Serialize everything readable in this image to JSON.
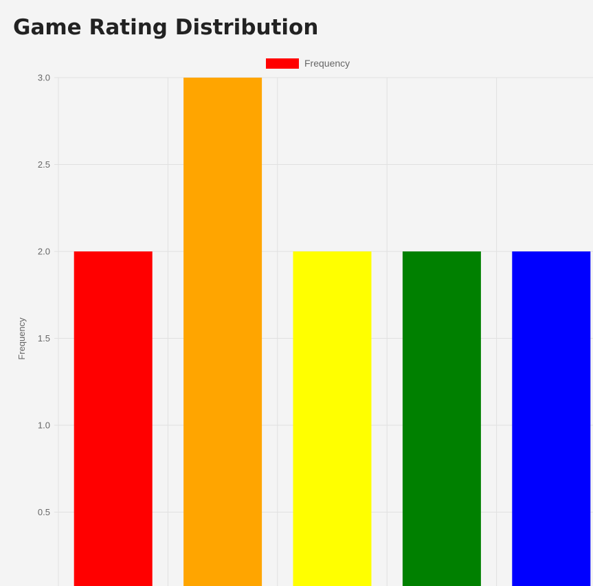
{
  "page": {
    "title": "Game Rating Distribution"
  },
  "chart_data": {
    "type": "bar",
    "title": "",
    "categories": [
      "",
      "",
      "",
      "",
      ""
    ],
    "series": [
      {
        "name": "Frequency",
        "values": [
          2,
          3,
          2,
          2,
          2
        ],
        "colors": [
          "#ff0000",
          "#ffa500",
          "#ffff00",
          "#008000",
          "#0000ff"
        ]
      }
    ],
    "xlabel": "",
    "ylabel": "Frequency",
    "ylim": [
      0,
      3
    ],
    "yticks": [
      "3.0",
      "2.5",
      "2.0",
      "1.5",
      "1.0",
      "0.5"
    ],
    "ytick_values": [
      3.0,
      2.5,
      2.0,
      1.5,
      1.0,
      0.5
    ],
    "legend": {
      "position": "top",
      "label": "Frequency",
      "color": "#ff0000"
    },
    "grid": true,
    "grid_color": "#e0e0e0"
  }
}
